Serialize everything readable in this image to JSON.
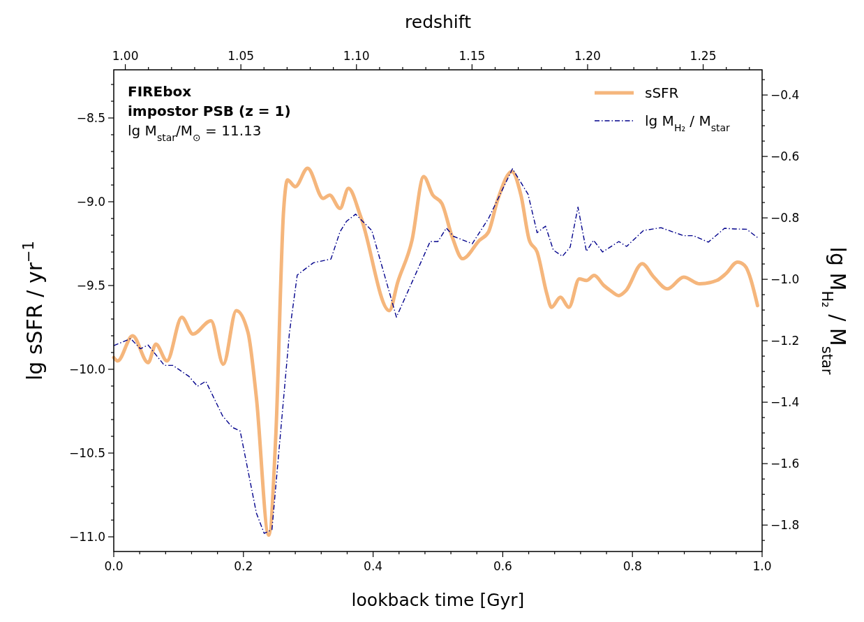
{
  "chart_data": {
    "type": "line",
    "xlabel": "lookback time [Gyr]",
    "ylabel": "lg sSFR / yr$^{−1}$",
    "y2label": "lg M$_{H₂}$ / M$_{star}$",
    "x2label": "redshift",
    "annotations": [
      "FIREbox",
      "impostor PSB (z = 1)",
      "lg M$_{star}$/M$_{⊙}$ = 11.13"
    ],
    "xlim": [
      0,
      1
    ],
    "xticks": [
      {
        "value": 0,
        "label": "0.0"
      },
      {
        "value": 0.04,
        "label": null
      },
      {
        "value": 0.08,
        "label": null
      },
      {
        "value": 0.12,
        "label": null
      },
      {
        "value": 0.16,
        "label": null
      },
      {
        "value": 0.2,
        "label": "0.2"
      },
      {
        "value": 0.24,
        "label": null
      },
      {
        "value": 0.28,
        "label": null
      },
      {
        "value": 0.32,
        "label": null
      },
      {
        "value": 0.36,
        "label": null
      },
      {
        "value": 0.4,
        "label": "0.4"
      },
      {
        "value": 0.44,
        "label": null
      },
      {
        "value": 0.48,
        "label": null
      },
      {
        "value": 0.52,
        "label": null
      },
      {
        "value": 0.56,
        "label": null
      },
      {
        "value": 0.6,
        "label": "0.6"
      },
      {
        "value": 0.64,
        "label": null
      },
      {
        "value": 0.68,
        "label": null
      },
      {
        "value": 0.72,
        "label": null
      },
      {
        "value": 0.76,
        "label": null
      },
      {
        "value": 0.8,
        "label": "0.8"
      },
      {
        "value": 0.84,
        "label": null
      },
      {
        "value": 0.88,
        "label": null
      },
      {
        "value": 0.92,
        "label": null
      },
      {
        "value": 0.96,
        "label": null
      },
      {
        "value": 1,
        "label": "1.0"
      }
    ],
    "x2lim": [
      0.995,
      1.2755
    ],
    "x2ticks": [
      {
        "value": 1,
        "label": "1.00"
      },
      {
        "value": 1.01,
        "label": null
      },
      {
        "value": 1.02,
        "label": null
      },
      {
        "value": 1.03,
        "label": null
      },
      {
        "value": 1.04,
        "label": null
      },
      {
        "value": 1.05,
        "label": "1.05"
      },
      {
        "value": 1.06,
        "label": null
      },
      {
        "value": 1.07,
        "label": null
      },
      {
        "value": 1.08,
        "label": null
      },
      {
        "value": 1.09,
        "label": null
      },
      {
        "value": 1.1,
        "label": "1.10"
      },
      {
        "value": 1.11,
        "label": null
      },
      {
        "value": 1.12,
        "label": null
      },
      {
        "value": 1.13,
        "label": null
      },
      {
        "value": 1.14,
        "label": null
      },
      {
        "value": 1.15,
        "label": "1.15"
      },
      {
        "value": 1.16,
        "label": null
      },
      {
        "value": 1.17,
        "label": null
      },
      {
        "value": 1.18,
        "label": null
      },
      {
        "value": 1.19,
        "label": null
      },
      {
        "value": 1.2,
        "label": "1.20"
      },
      {
        "value": 1.21,
        "label": null
      },
      {
        "value": 1.22,
        "label": null
      },
      {
        "value": 1.23,
        "label": null
      },
      {
        "value": 1.24,
        "label": null
      },
      {
        "value": 1.25,
        "label": "1.25"
      },
      {
        "value": 1.26,
        "label": null
      },
      {
        "value": 1.27,
        "label": null
      }
    ],
    "ylim": [
      -11.0875,
      -8.2125
    ],
    "yticks": [
      {
        "value": -11,
        "label": "−11.0"
      },
      {
        "value": -10.9,
        "label": null
      },
      {
        "value": -10.8,
        "label": null
      },
      {
        "value": -10.7,
        "label": null
      },
      {
        "value": -10.6,
        "label": null
      },
      {
        "value": -10.5,
        "label": "−10.5"
      },
      {
        "value": -10.4,
        "label": null
      },
      {
        "value": -10.3,
        "label": null
      },
      {
        "value": -10.2,
        "label": null
      },
      {
        "value": -10.1,
        "label": null
      },
      {
        "value": -10,
        "label": "−10.0"
      },
      {
        "value": -9.9,
        "label": null
      },
      {
        "value": -9.8,
        "label": null
      },
      {
        "value": -9.7,
        "label": null
      },
      {
        "value": -9.6,
        "label": null
      },
      {
        "value": -9.5,
        "label": "−9.5"
      },
      {
        "value": -9.4,
        "label": null
      },
      {
        "value": -9.3,
        "label": null
      },
      {
        "value": -9.2,
        "label": null
      },
      {
        "value": -9.1,
        "label": null
      },
      {
        "value": -9,
        "label": "−9.0"
      },
      {
        "value": -8.9,
        "label": null
      },
      {
        "value": -8.8,
        "label": null
      },
      {
        "value": -8.7,
        "label": null
      },
      {
        "value": -8.6,
        "label": null
      },
      {
        "value": -8.5,
        "label": "−8.5"
      },
      {
        "value": -8.4,
        "label": null
      },
      {
        "value": -8.3,
        "label": null
      }
    ],
    "y2lim": [
      -1.886,
      -0.318
    ],
    "y2ticks": [
      {
        "value": -1.85,
        "label": null
      },
      {
        "value": -1.8,
        "label": "−1.8"
      },
      {
        "value": -1.75,
        "label": null
      },
      {
        "value": -1.7,
        "label": null
      },
      {
        "value": -1.65,
        "label": null
      },
      {
        "value": -1.6,
        "label": "−1.6"
      },
      {
        "value": -1.55,
        "label": null
      },
      {
        "value": -1.5,
        "label": null
      },
      {
        "value": -1.45,
        "label": null
      },
      {
        "value": -1.4,
        "label": "−1.4"
      },
      {
        "value": -1.35,
        "label": null
      },
      {
        "value": -1.3,
        "label": null
      },
      {
        "value": -1.25,
        "label": null
      },
      {
        "value": -1.2,
        "label": "−1.2"
      },
      {
        "value": -1.15,
        "label": null
      },
      {
        "value": -1.1,
        "label": null
      },
      {
        "value": -1.05,
        "label": null
      },
      {
        "value": -1,
        "label": "−1.0"
      },
      {
        "value": -0.95,
        "label": null
      },
      {
        "value": -0.9,
        "label": null
      },
      {
        "value": -0.85,
        "label": null
      },
      {
        "value": -0.8,
        "label": "−0.8"
      },
      {
        "value": -0.75,
        "label": null
      },
      {
        "value": -0.7,
        "label": null
      },
      {
        "value": -0.65,
        "label": null
      },
      {
        "value": -0.6,
        "label": "−0.6"
      },
      {
        "value": -0.55,
        "label": null
      },
      {
        "value": -0.5,
        "label": null
      },
      {
        "value": -0.45,
        "label": null
      },
      {
        "value": -0.4,
        "label": "−0.4"
      },
      {
        "value": -0.35,
        "label": null
      }
    ],
    "grid": false,
    "legend": "top right",
    "marker": "none",
    "series": [
      {
        "name": "sSFR",
        "color": "#f5b67c",
        "line_style": "solid",
        "x": [
          0,
          0.006,
          0.029,
          0.053,
          0.065,
          0.082,
          0.105,
          0.122,
          0.15,
          0.169,
          0.189,
          0.207,
          0.22,
          0.239,
          0.25,
          0.262,
          0.268,
          0.28,
          0.299,
          0.323,
          0.333,
          0.349,
          0.362,
          0.381,
          0.425,
          0.438,
          0.46,
          0.478,
          0.492,
          0.506,
          0.522,
          0.538,
          0.564,
          0.578,
          0.592,
          0.614,
          0.628,
          0.641,
          0.653,
          0.668,
          0.675,
          0.689,
          0.702,
          0.718,
          0.729,
          0.741,
          0.756,
          0.766,
          0.779,
          0.79,
          0.815,
          0.833,
          0.854,
          0.879,
          0.904,
          0.93,
          0.944,
          0.962,
          0.973,
          0.993
        ],
        "values": [
          -9.93,
          -9.95,
          -9.8,
          -9.96,
          -9.85,
          -9.95,
          -9.69,
          -9.79,
          -9.71,
          -9.97,
          -9.65,
          -9.78,
          -10.17,
          -10.99,
          -10.39,
          -9.05,
          -8.87,
          -8.91,
          -8.8,
          -8.98,
          -8.96,
          -9.04,
          -8.92,
          -9.09,
          -9.65,
          -9.48,
          -9.23,
          -8.85,
          -8.96,
          -9.01,
          -9.21,
          -9.34,
          -9.23,
          -9.18,
          -8.99,
          -8.82,
          -8.96,
          -9.23,
          -9.3,
          -9.55,
          -9.63,
          -9.57,
          -9.63,
          -9.46,
          -9.47,
          -9.44,
          -9.5,
          -9.53,
          -9.56,
          -9.53,
          -9.37,
          -9.45,
          -9.52,
          -9.45,
          -9.49,
          -9.47,
          -9.43,
          -9.36,
          -9.38,
          -9.62
        ]
      },
      {
        "name": "lg M$_{H₂}$ / M$_{star}$",
        "color": "#00008b",
        "line_style": "dashdot",
        "axis": "y2",
        "x": [
          0,
          0.026,
          0.041,
          0.053,
          0.078,
          0.091,
          0.116,
          0.129,
          0.142,
          0.168,
          0.183,
          0.195,
          0.22,
          0.232,
          0.244,
          0.271,
          0.283,
          0.308,
          0.335,
          0.349,
          0.359,
          0.373,
          0.398,
          0.436,
          0.488,
          0.5,
          0.513,
          0.524,
          0.553,
          0.578,
          0.615,
          0.639,
          0.653,
          0.666,
          0.678,
          0.692,
          0.704,
          0.716,
          0.729,
          0.74,
          0.754,
          0.779,
          0.791,
          0.817,
          0.844,
          0.879,
          0.894,
          0.917,
          0.942,
          0.958,
          0.976,
          0.993
        ],
        "values": [
          -1.216,
          -1.193,
          -1.226,
          -1.214,
          -1.28,
          -1.28,
          -1.316,
          -1.348,
          -1.332,
          -1.445,
          -1.482,
          -1.494,
          -1.761,
          -1.827,
          -1.815,
          -1.173,
          -0.986,
          -0.946,
          -0.934,
          -0.845,
          -0.811,
          -0.788,
          -0.841,
          -1.123,
          -0.877,
          -0.877,
          -0.833,
          -0.86,
          -0.884,
          -0.802,
          -0.64,
          -0.723,
          -0.848,
          -0.827,
          -0.905,
          -0.925,
          -0.895,
          -0.765,
          -0.909,
          -0.873,
          -0.911,
          -0.877,
          -0.893,
          -0.841,
          -0.832,
          -0.858,
          -0.858,
          -0.879,
          -0.834,
          -0.836,
          -0.837,
          -0.864
        ]
      }
    ]
  }
}
